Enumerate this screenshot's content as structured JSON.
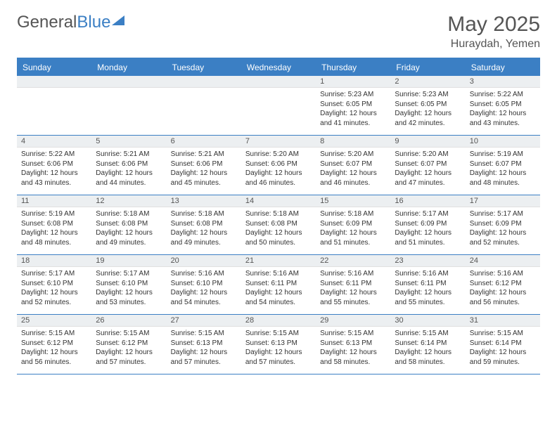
{
  "logo": {
    "part1": "General",
    "part2": "Blue"
  },
  "title": "May 2025",
  "location": "Huraydah, Yemen",
  "header_bg": "#3b7fc4",
  "day_names": [
    "Sunday",
    "Monday",
    "Tuesday",
    "Wednesday",
    "Thursday",
    "Friday",
    "Saturday"
  ],
  "weeks": [
    [
      {
        "n": "",
        "sr": "",
        "ss": "",
        "dl": ""
      },
      {
        "n": "",
        "sr": "",
        "ss": "",
        "dl": ""
      },
      {
        "n": "",
        "sr": "",
        "ss": "",
        "dl": ""
      },
      {
        "n": "",
        "sr": "",
        "ss": "",
        "dl": ""
      },
      {
        "n": "1",
        "sr": "Sunrise: 5:23 AM",
        "ss": "Sunset: 6:05 PM",
        "dl": "Daylight: 12 hours and 41 minutes."
      },
      {
        "n": "2",
        "sr": "Sunrise: 5:23 AM",
        "ss": "Sunset: 6:05 PM",
        "dl": "Daylight: 12 hours and 42 minutes."
      },
      {
        "n": "3",
        "sr": "Sunrise: 5:22 AM",
        "ss": "Sunset: 6:05 PM",
        "dl": "Daylight: 12 hours and 43 minutes."
      }
    ],
    [
      {
        "n": "4",
        "sr": "Sunrise: 5:22 AM",
        "ss": "Sunset: 6:06 PM",
        "dl": "Daylight: 12 hours and 43 minutes."
      },
      {
        "n": "5",
        "sr": "Sunrise: 5:21 AM",
        "ss": "Sunset: 6:06 PM",
        "dl": "Daylight: 12 hours and 44 minutes."
      },
      {
        "n": "6",
        "sr": "Sunrise: 5:21 AM",
        "ss": "Sunset: 6:06 PM",
        "dl": "Daylight: 12 hours and 45 minutes."
      },
      {
        "n": "7",
        "sr": "Sunrise: 5:20 AM",
        "ss": "Sunset: 6:06 PM",
        "dl": "Daylight: 12 hours and 46 minutes."
      },
      {
        "n": "8",
        "sr": "Sunrise: 5:20 AM",
        "ss": "Sunset: 6:07 PM",
        "dl": "Daylight: 12 hours and 46 minutes."
      },
      {
        "n": "9",
        "sr": "Sunrise: 5:20 AM",
        "ss": "Sunset: 6:07 PM",
        "dl": "Daylight: 12 hours and 47 minutes."
      },
      {
        "n": "10",
        "sr": "Sunrise: 5:19 AM",
        "ss": "Sunset: 6:07 PM",
        "dl": "Daylight: 12 hours and 48 minutes."
      }
    ],
    [
      {
        "n": "11",
        "sr": "Sunrise: 5:19 AM",
        "ss": "Sunset: 6:08 PM",
        "dl": "Daylight: 12 hours and 48 minutes."
      },
      {
        "n": "12",
        "sr": "Sunrise: 5:18 AM",
        "ss": "Sunset: 6:08 PM",
        "dl": "Daylight: 12 hours and 49 minutes."
      },
      {
        "n": "13",
        "sr": "Sunrise: 5:18 AM",
        "ss": "Sunset: 6:08 PM",
        "dl": "Daylight: 12 hours and 49 minutes."
      },
      {
        "n": "14",
        "sr": "Sunrise: 5:18 AM",
        "ss": "Sunset: 6:08 PM",
        "dl": "Daylight: 12 hours and 50 minutes."
      },
      {
        "n": "15",
        "sr": "Sunrise: 5:18 AM",
        "ss": "Sunset: 6:09 PM",
        "dl": "Daylight: 12 hours and 51 minutes."
      },
      {
        "n": "16",
        "sr": "Sunrise: 5:17 AM",
        "ss": "Sunset: 6:09 PM",
        "dl": "Daylight: 12 hours and 51 minutes."
      },
      {
        "n": "17",
        "sr": "Sunrise: 5:17 AM",
        "ss": "Sunset: 6:09 PM",
        "dl": "Daylight: 12 hours and 52 minutes."
      }
    ],
    [
      {
        "n": "18",
        "sr": "Sunrise: 5:17 AM",
        "ss": "Sunset: 6:10 PM",
        "dl": "Daylight: 12 hours and 52 minutes."
      },
      {
        "n": "19",
        "sr": "Sunrise: 5:17 AM",
        "ss": "Sunset: 6:10 PM",
        "dl": "Daylight: 12 hours and 53 minutes."
      },
      {
        "n": "20",
        "sr": "Sunrise: 5:16 AM",
        "ss": "Sunset: 6:10 PM",
        "dl": "Daylight: 12 hours and 54 minutes."
      },
      {
        "n": "21",
        "sr": "Sunrise: 5:16 AM",
        "ss": "Sunset: 6:11 PM",
        "dl": "Daylight: 12 hours and 54 minutes."
      },
      {
        "n": "22",
        "sr": "Sunrise: 5:16 AM",
        "ss": "Sunset: 6:11 PM",
        "dl": "Daylight: 12 hours and 55 minutes."
      },
      {
        "n": "23",
        "sr": "Sunrise: 5:16 AM",
        "ss": "Sunset: 6:11 PM",
        "dl": "Daylight: 12 hours and 55 minutes."
      },
      {
        "n": "24",
        "sr": "Sunrise: 5:16 AM",
        "ss": "Sunset: 6:12 PM",
        "dl": "Daylight: 12 hours and 56 minutes."
      }
    ],
    [
      {
        "n": "25",
        "sr": "Sunrise: 5:15 AM",
        "ss": "Sunset: 6:12 PM",
        "dl": "Daylight: 12 hours and 56 minutes."
      },
      {
        "n": "26",
        "sr": "Sunrise: 5:15 AM",
        "ss": "Sunset: 6:12 PM",
        "dl": "Daylight: 12 hours and 57 minutes."
      },
      {
        "n": "27",
        "sr": "Sunrise: 5:15 AM",
        "ss": "Sunset: 6:13 PM",
        "dl": "Daylight: 12 hours and 57 minutes."
      },
      {
        "n": "28",
        "sr": "Sunrise: 5:15 AM",
        "ss": "Sunset: 6:13 PM",
        "dl": "Daylight: 12 hours and 57 minutes."
      },
      {
        "n": "29",
        "sr": "Sunrise: 5:15 AM",
        "ss": "Sunset: 6:13 PM",
        "dl": "Daylight: 12 hours and 58 minutes."
      },
      {
        "n": "30",
        "sr": "Sunrise: 5:15 AM",
        "ss": "Sunset: 6:14 PM",
        "dl": "Daylight: 12 hours and 58 minutes."
      },
      {
        "n": "31",
        "sr": "Sunrise: 5:15 AM",
        "ss": "Sunset: 6:14 PM",
        "dl": "Daylight: 12 hours and 59 minutes."
      }
    ]
  ]
}
